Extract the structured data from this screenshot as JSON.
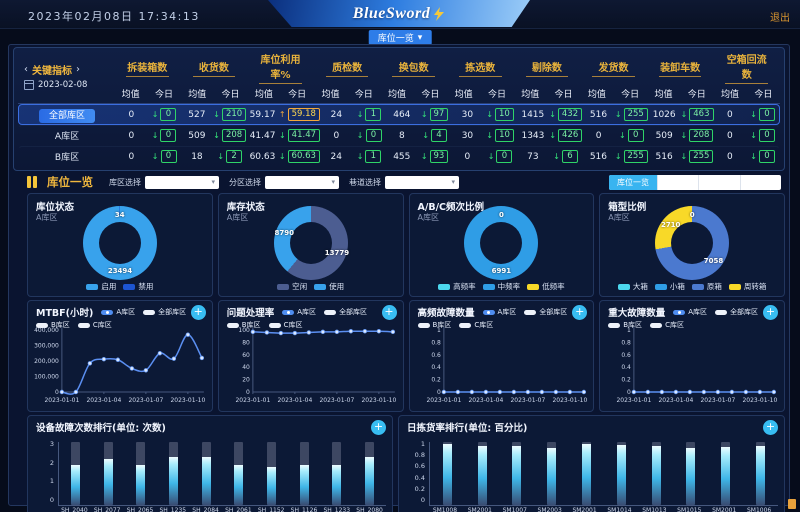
{
  "glyphs": {
    "caret": "▾",
    "expand": "+",
    "prev": "‹",
    "next": "›",
    "down": "↓",
    "up": "↑"
  },
  "header": {
    "datetime": "2023年02月08日 17:34:13",
    "logo": "BlueSword",
    "logout": "退出"
  },
  "tabbar": {
    "active_tab": "库位一览"
  },
  "kpi": {
    "nav_label": "关键指标",
    "date": "2023-02-08",
    "sub_headers": [
      "均值",
      "今日"
    ],
    "metrics": [
      "拆装箱数",
      "收货数",
      "库位利用率%",
      "质检数",
      "换包数",
      "拣选数",
      "剔除数",
      "发货数",
      "装卸车数",
      "空箱回流数"
    ],
    "rows": [
      {
        "label": "全部库区",
        "highlight": true,
        "cells": [
          {
            "avg": "0",
            "today": "0",
            "dir": "down"
          },
          {
            "avg": "527",
            "today": "210",
            "dir": "down"
          },
          {
            "avg": "59.17",
            "today": "59.18",
            "dir": "up"
          },
          {
            "avg": "24",
            "today": "1",
            "dir": "down"
          },
          {
            "avg": "464",
            "today": "97",
            "dir": "down"
          },
          {
            "avg": "30",
            "today": "10",
            "dir": "down"
          },
          {
            "avg": "1415",
            "today": "432",
            "dir": "down"
          },
          {
            "avg": "516",
            "today": "255",
            "dir": "down"
          },
          {
            "avg": "1026",
            "today": "463",
            "dir": "down"
          },
          {
            "avg": "0",
            "today": "0",
            "dir": "down"
          }
        ]
      },
      {
        "label": "A库区",
        "highlight": false,
        "cells": [
          {
            "avg": "0",
            "today": "0",
            "dir": "down"
          },
          {
            "avg": "509",
            "today": "208",
            "dir": "down"
          },
          {
            "avg": "41.47",
            "today": "41.47",
            "dir": "down"
          },
          {
            "avg": "0",
            "today": "0",
            "dir": "down"
          },
          {
            "avg": "8",
            "today": "4",
            "dir": "down"
          },
          {
            "avg": "30",
            "today": "10",
            "dir": "down"
          },
          {
            "avg": "1343",
            "today": "426",
            "dir": "down"
          },
          {
            "avg": "0",
            "today": "0",
            "dir": "down"
          },
          {
            "avg": "509",
            "today": "208",
            "dir": "down"
          },
          {
            "avg": "0",
            "today": "0",
            "dir": "down"
          }
        ]
      },
      {
        "label": "B库区",
        "highlight": false,
        "cells": [
          {
            "avg": "0",
            "today": "0",
            "dir": "down"
          },
          {
            "avg": "18",
            "today": "2",
            "dir": "down"
          },
          {
            "avg": "60.63",
            "today": "60.63",
            "dir": "down"
          },
          {
            "avg": "24",
            "today": "1",
            "dir": "down"
          },
          {
            "avg": "455",
            "today": "93",
            "dir": "down"
          },
          {
            "avg": "0",
            "today": "0",
            "dir": "down"
          },
          {
            "avg": "73",
            "today": "6",
            "dir": "down"
          },
          {
            "avg": "516",
            "today": "255",
            "dir": "down"
          },
          {
            "avg": "516",
            "today": "255",
            "dir": "down"
          },
          {
            "avg": "0",
            "today": "0",
            "dir": "down"
          }
        ]
      }
    ]
  },
  "filters": {
    "section_title": "库位一览",
    "selects": [
      {
        "label": "库区选择",
        "value": ""
      },
      {
        "label": "分区选择",
        "value": ""
      },
      {
        "label": "巷道选择",
        "value": ""
      }
    ],
    "segmented": {
      "active": "库位一览",
      "inactive": [
        "",
        "",
        ""
      ]
    }
  },
  "chart_data": [
    {
      "id": "donut-location-status",
      "type": "pie",
      "title": "库位状态",
      "subtitle": "A库区",
      "slices": [
        {
          "label": "启用",
          "value": 23494,
          "color": "#38a2ec"
        },
        {
          "label": "禁用",
          "value": 34,
          "color": "#1d55d2"
        }
      ]
    },
    {
      "id": "donut-stock-status",
      "type": "pie",
      "title": "库存状态",
      "subtitle": "A库区",
      "slices": [
        {
          "label": "空闲",
          "value": 13779,
          "color": "#4c5d91"
        },
        {
          "label": "使用",
          "value": 8790,
          "color": "#38a2ec"
        }
      ]
    },
    {
      "id": "donut-abc-frequency",
      "type": "pie",
      "title": "A/B/C频次比例",
      "subtitle": "A库区",
      "slices": [
        {
          "label": "高频率",
          "value": 0,
          "color": "#4cd7ee",
          "show_label": true
        },
        {
          "label": "中频率",
          "value": 6991,
          "color": "#2f9de6"
        },
        {
          "label": "低频率",
          "value": 0,
          "color": "#f8d928",
          "show_label": false
        }
      ]
    },
    {
      "id": "donut-box-type",
      "type": "pie",
      "title": "箱型比例",
      "subtitle": "A库区",
      "slices": [
        {
          "label": "大箱",
          "value": 0,
          "color": "#4cd7ee",
          "show_label": true
        },
        {
          "label": "小箱",
          "value": 0,
          "color": "#2f9de6",
          "show_label": false
        },
        {
          "label": "原箱",
          "value": 7058,
          "color": "#4b79cf"
        },
        {
          "label": "周转箱",
          "value": 2710,
          "color": "#f8d928"
        }
      ]
    },
    {
      "id": "line-mtbf",
      "type": "line",
      "title": "MTBF(小时)",
      "legend": [
        "A库区",
        "全部库区",
        "B库区",
        "C库区"
      ],
      "x": [
        "2023-01-01",
        "2023-01-02",
        "2023-01-03",
        "2023-01-04",
        "2023-01-05",
        "2023-01-06",
        "2023-01-07",
        "2023-01-08",
        "2023-01-09",
        "2023-01-10",
        "2023-01-11"
      ],
      "values": [
        0,
        0,
        185000,
        212000,
        208000,
        152000,
        140000,
        250000,
        215000,
        370000,
        220000
      ],
      "ylim": [
        0,
        400000
      ],
      "yticks": [
        0,
        100000,
        200000,
        300000,
        400000
      ],
      "ytick_labels": [
        "0",
        "100,000",
        "200,000",
        "300,000",
        "400,000"
      ],
      "x_label_every": 3
    },
    {
      "id": "line-issue-rate",
      "type": "line",
      "title": "问题处理率",
      "legend": [
        "A库区",
        "全部库区",
        "B库区",
        "C库区"
      ],
      "x": [
        "2023-01-01",
        "2023-01-02",
        "2023-01-03",
        "2023-01-04",
        "2023-01-05",
        "2023-01-06",
        "2023-01-07",
        "2023-01-08",
        "2023-01-09",
        "2023-01-10",
        "2023-01-11"
      ],
      "values": [
        97,
        96,
        95,
        95,
        96,
        97,
        97,
        98,
        98,
        98,
        97
      ],
      "ylim": [
        0,
        100
      ],
      "yticks": [
        0,
        20,
        40,
        60,
        80,
        100
      ],
      "ytick_labels": [
        "0",
        "20",
        "40",
        "60",
        "80",
        "100"
      ],
      "x_label_every": 3
    },
    {
      "id": "line-high-freq-fault",
      "type": "line",
      "title": "高频故障数量",
      "legend": [
        "A库区",
        "全部库区",
        "B库区",
        "C库区"
      ],
      "x": [
        "2023-01-01",
        "2023-01-02",
        "2023-01-03",
        "2023-01-04",
        "2023-01-05",
        "2023-01-06",
        "2023-01-07",
        "2023-01-08",
        "2023-01-09",
        "2023-01-10",
        "2023-01-11"
      ],
      "values": [
        0,
        0,
        0,
        0,
        0,
        0,
        0,
        0,
        0,
        0,
        0
      ],
      "ylim": [
        0,
        1
      ],
      "yticks": [
        0,
        0.2,
        0.4,
        0.6,
        0.8,
        1
      ],
      "ytick_labels": [
        "0",
        "0.2",
        "0.4",
        "0.6",
        "0.8",
        "1"
      ],
      "x_label_every": 3
    },
    {
      "id": "line-major-fault",
      "type": "line",
      "title": "重大故障数量",
      "legend": [
        "A库区",
        "全部库区",
        "B库区",
        "C库区"
      ],
      "x": [
        "2023-01-01",
        "2023-01-02",
        "2023-01-03",
        "2023-01-04",
        "2023-01-05",
        "2023-01-06",
        "2023-01-07",
        "2023-01-08",
        "2023-01-09",
        "2023-01-10",
        "2023-01-11"
      ],
      "values": [
        0,
        0,
        0,
        0,
        0,
        0,
        0,
        0,
        0,
        0,
        0
      ],
      "ylim": [
        0,
        1
      ],
      "yticks": [
        0,
        0.2,
        0.4,
        0.6,
        0.8,
        1
      ],
      "ytick_labels": [
        "0",
        "0.2",
        "0.4",
        "0.6",
        "0.8",
        "1"
      ],
      "x_label_every": 3
    },
    {
      "id": "bar-device-fault",
      "type": "bar",
      "title": "设备故障次数排行(单位: 次数)",
      "categories": [
        "SH_2040",
        "SH_2077",
        "SH_2065",
        "SH_1235",
        "SH_2084",
        "SH_2061",
        "SH_1152",
        "SH_1126",
        "SH_1233",
        "SH_2080"
      ],
      "values": [
        1.9,
        2.2,
        1.9,
        2.3,
        2.3,
        1.9,
        1.8,
        1.9,
        1.9,
        2.3
      ],
      "ylim": [
        0,
        3
      ],
      "ytick_labels": [
        "0",
        "1",
        "2",
        "3"
      ],
      "label_wrap": false
    },
    {
      "id": "bar-pick-rate",
      "type": "bar",
      "title": "日拣货率排行(单位: 百分比)",
      "categories": [
        "SM1008_1",
        "SM2001_1",
        "SM1007_1",
        "SM2003_6",
        "SM2001_3",
        "SM1014_1",
        "SM1013_1",
        "SM1015_1",
        "SM2001_4",
        "SM1006_1"
      ],
      "values": [
        0.97,
        0.93,
        0.94,
        0.91,
        0.97,
        0.96,
        0.94,
        0.91,
        0.92,
        0.93
      ],
      "ylim": [
        0,
        1
      ],
      "ytick_labels": [
        "0",
        "0.2",
        "0.4",
        "0.6",
        "0.8",
        "1"
      ],
      "label_wrap": true
    }
  ]
}
